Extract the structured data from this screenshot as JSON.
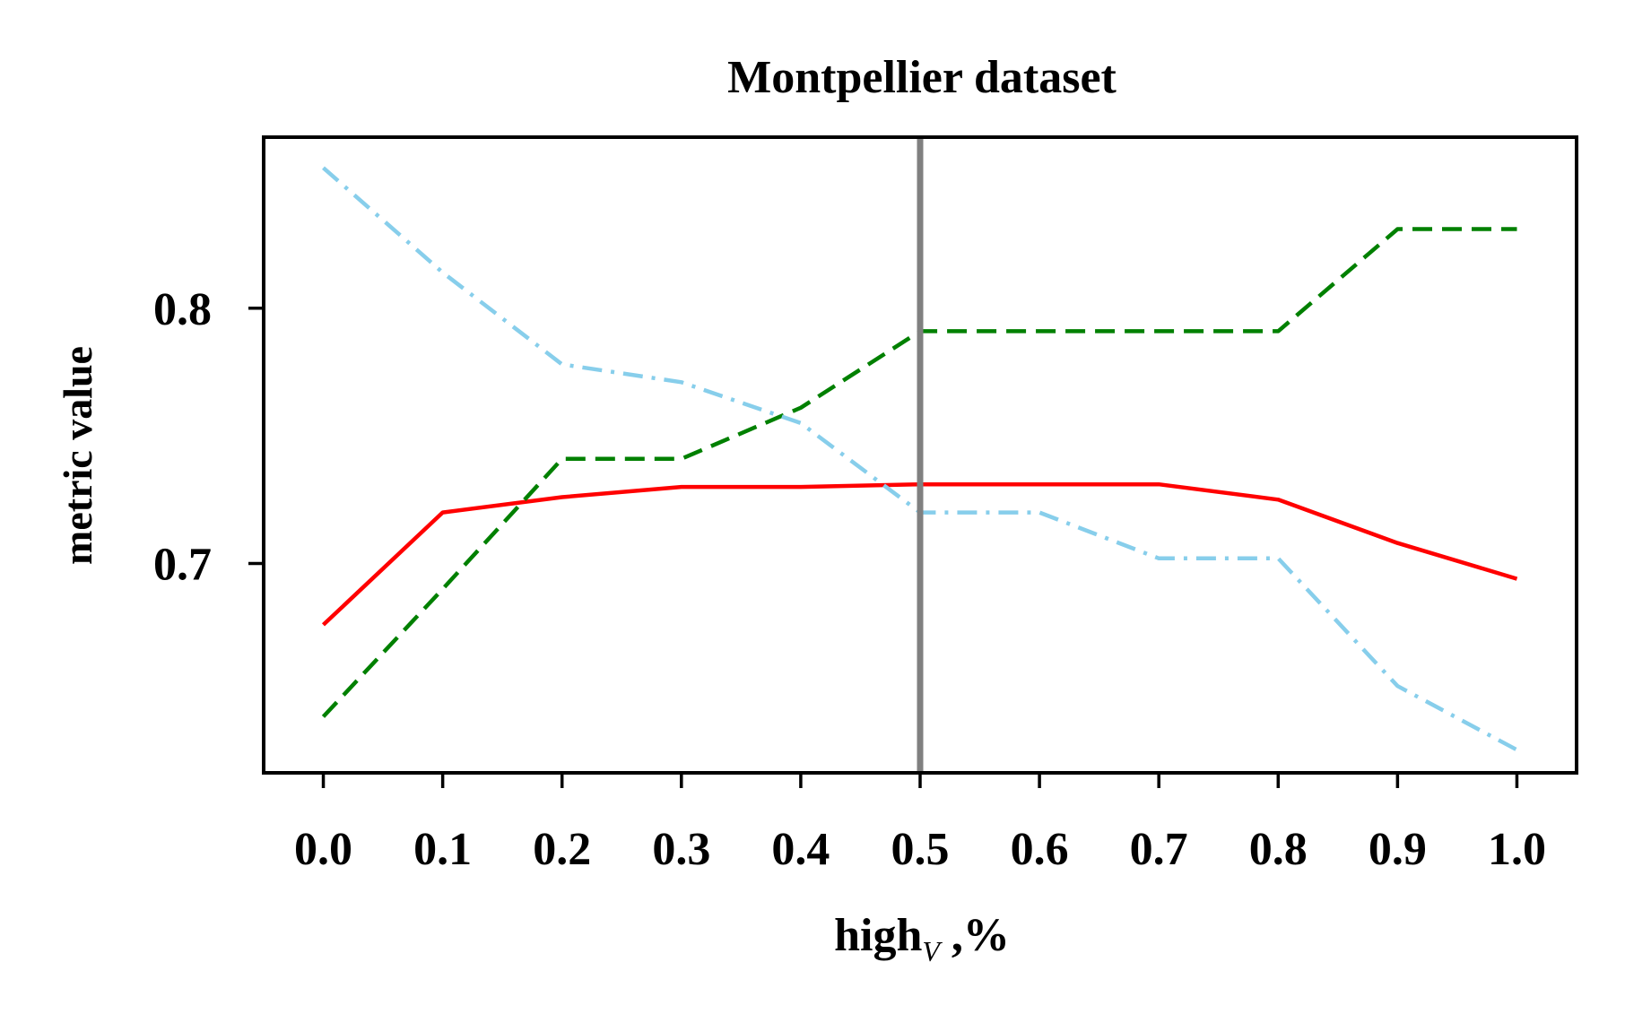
{
  "chart_data": {
    "type": "line",
    "title": "Montpellier dataset",
    "xlabel": "high",
    "xlabel_sub": "V",
    "xlabel_suffix": " ,%",
    "ylabel": "metric value",
    "x": [
      0.0,
      0.1,
      0.2,
      0.3,
      0.4,
      0.5,
      0.6,
      0.7,
      0.8,
      0.9,
      1.0
    ],
    "x_tick_labels": [
      "0.0",
      "0.1",
      "0.2",
      "0.3",
      "0.4",
      "0.5",
      "0.6",
      "0.7",
      "0.8",
      "0.9",
      "1.0"
    ],
    "y_ticks": [
      0.7,
      0.8
    ],
    "y_tick_labels": [
      "0.7",
      "0.8"
    ],
    "xlim": [
      -0.05,
      1.05
    ],
    "ylim": [
      0.618,
      0.867
    ],
    "grid": false,
    "vline": {
      "x": 0.5,
      "color": "#808080"
    },
    "series": [
      {
        "color": "#ff0000",
        "style": "solid",
        "values": [
          0.676,
          0.72,
          0.726,
          0.73,
          0.73,
          0.731,
          0.731,
          0.731,
          0.725,
          0.708,
          0.694
        ]
      },
      {
        "color": "#008000",
        "style": "dashed",
        "values": [
          0.64,
          0.69,
          0.741,
          0.741,
          0.761,
          0.791,
          0.791,
          0.791,
          0.791,
          0.831,
          0.831
        ]
      },
      {
        "color": "#87ceeb",
        "style": "dashdot",
        "values": [
          0.855,
          0.814,
          0.778,
          0.771,
          0.755,
          0.72,
          0.72,
          0.702,
          0.702,
          0.652,
          0.627
        ]
      }
    ]
  }
}
